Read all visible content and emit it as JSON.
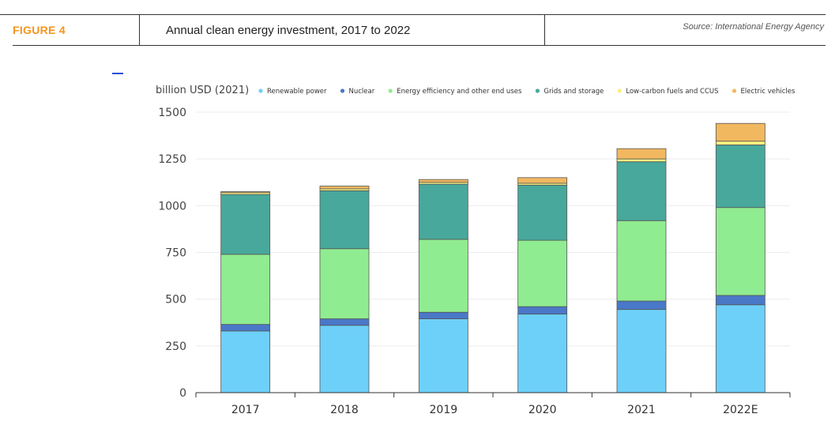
{
  "header": {
    "figure_label": "FIGURE 4",
    "title": "Annual clean energy investment, 2017 to 2022",
    "source": "Source: International Energy Agency"
  },
  "chart_data": {
    "type": "bar",
    "stacked": true,
    "ylabel": "billion USD (2021)",
    "ylim": [
      0,
      1500
    ],
    "yticks": [
      0,
      250,
      500,
      750,
      1000,
      1250,
      1500
    ],
    "grid": true,
    "legend_position": "top",
    "categories": [
      "2017",
      "2018",
      "2019",
      "2020",
      "2021",
      "2022E"
    ],
    "series": [
      {
        "name": "Renewable power",
        "color": "#6dd0f8",
        "values": [
          330,
          360,
          395,
          420,
          445,
          470
        ]
      },
      {
        "name": "Nuclear",
        "color": "#4a78c8",
        "values": [
          35,
          35,
          35,
          40,
          45,
          50
        ]
      },
      {
        "name": "Energy efficiency and other end uses",
        "color": "#90ec90",
        "values": [
          375,
          375,
          390,
          355,
          430,
          470
        ]
      },
      {
        "name": "Grids and storage",
        "color": "#48a89c",
        "values": [
          320,
          310,
          295,
          295,
          315,
          335
        ]
      },
      {
        "name": "Low-carbon fuels and CCUS",
        "color": "#f8f080",
        "values": [
          10,
          10,
          10,
          10,
          15,
          20
        ]
      },
      {
        "name": "Electric vehicles",
        "color": "#f2b860",
        "values": [
          5,
          15,
          15,
          30,
          55,
          95
        ]
      }
    ]
  }
}
